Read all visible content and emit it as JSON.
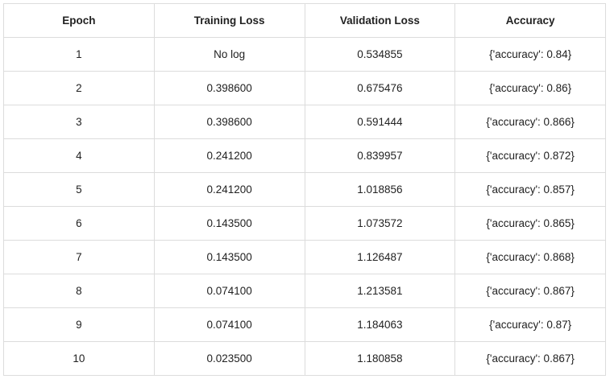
{
  "table": {
    "header": [
      "Epoch",
      "Training Loss",
      "Validation Loss",
      "Accuracy"
    ],
    "rows": [
      [
        "1",
        "No log",
        "0.534855",
        "{'accuracy': 0.84}"
      ],
      [
        "2",
        "0.398600",
        "0.675476",
        "{'accuracy': 0.86}"
      ],
      [
        "3",
        "0.398600",
        "0.591444",
        "{'accuracy': 0.866}"
      ],
      [
        "4",
        "0.241200",
        "0.839957",
        "{'accuracy': 0.872}"
      ],
      [
        "5",
        "0.241200",
        "1.018856",
        "{'accuracy': 0.857}"
      ],
      [
        "6",
        "0.143500",
        "1.073572",
        "{'accuracy': 0.865}"
      ],
      [
        "7",
        "0.143500",
        "1.126487",
        "{'accuracy': 0.868}"
      ],
      [
        "8",
        "0.074100",
        "1.213581",
        "{'accuracy': 0.867}"
      ],
      [
        "9",
        "0.074100",
        "1.184063",
        "{'accuracy': 0.87}"
      ],
      [
        "10",
        "0.023500",
        "1.180858",
        "{'accuracy': 0.867}"
      ]
    ]
  }
}
